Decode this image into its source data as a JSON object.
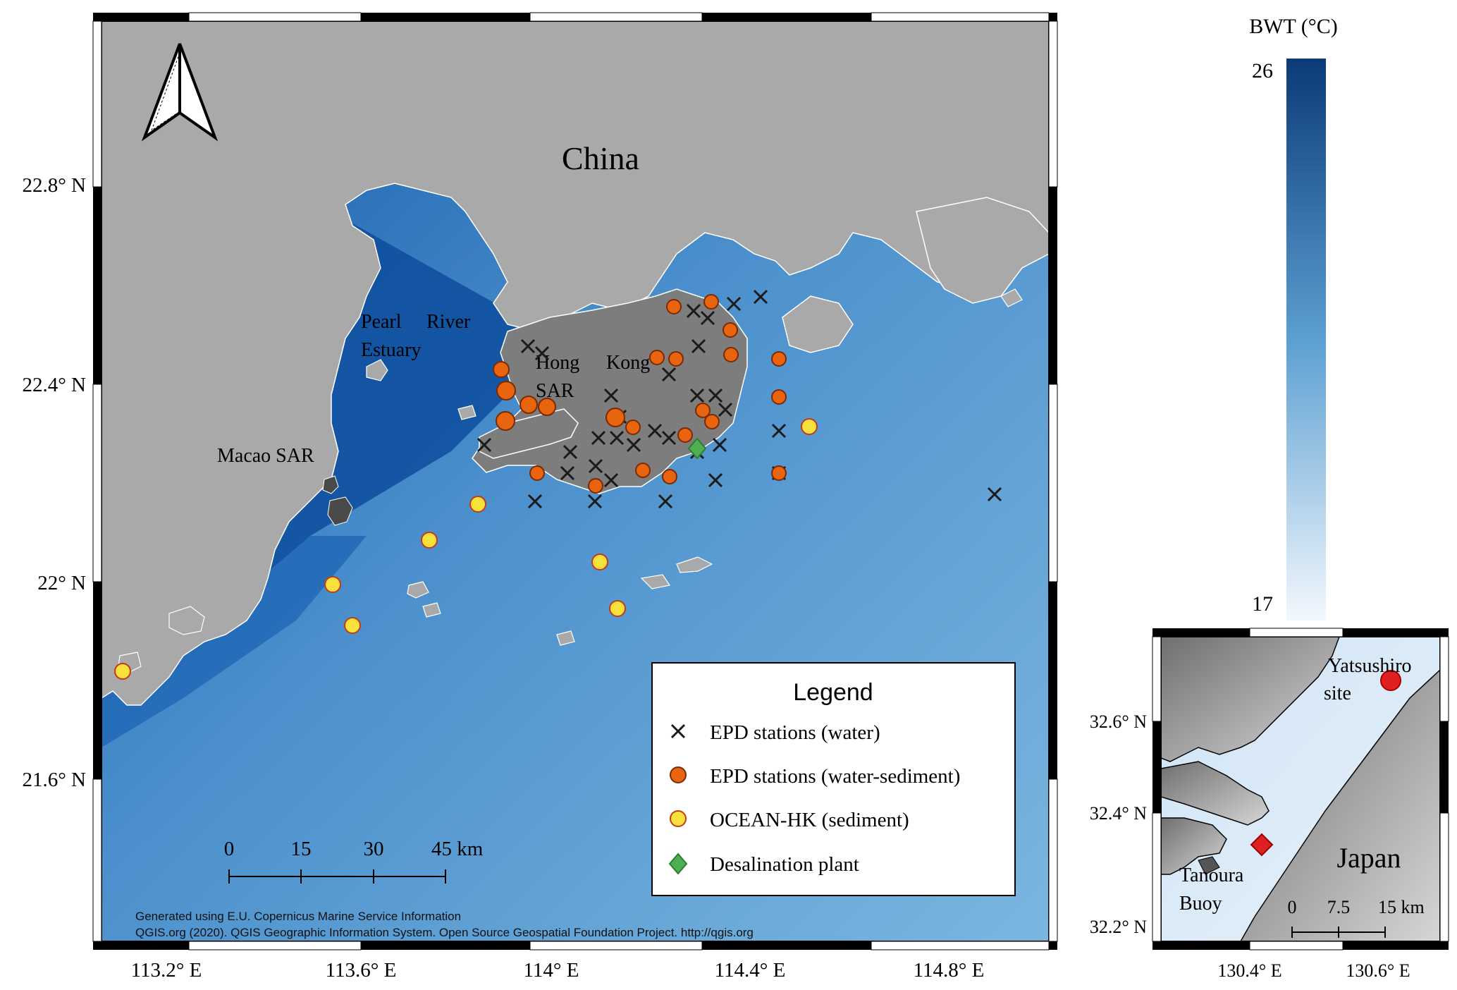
{
  "main_map": {
    "country_label": "China",
    "labels": {
      "pearl_river_line1": "Pearl",
      "pearl_river_line1b": "River",
      "pearl_river_line2": "Estuary",
      "hong_kong_line1": "Hong",
      "hong_kong_line1b": "Kong",
      "hong_kong_line2": "SAR",
      "macao": "Macao SAR"
    },
    "lat_ticks": [
      "22.8° N",
      "22.4° N",
      "22° N",
      "21.6° N"
    ],
    "lon_ticks": [
      "113.2° E",
      "113.6° E",
      "114° E",
      "114.4° E",
      "114.8° E"
    ],
    "scale_bar": {
      "ticks": [
        "0",
        "15",
        "30",
        "45 km"
      ]
    },
    "credits": [
      "Generated using E.U. Copernicus Marine Service Information",
      "QGIS.org (2020). QGIS Geographic Information System. Open Source Geospatial Foundation Project. http://qgis.org"
    ],
    "legend": {
      "title": "Legend",
      "items": [
        {
          "label": "EPD stations (water)",
          "symbol": "cross",
          "color": "#1a1a1a"
        },
        {
          "label": "EPD stations (water-sediment)",
          "symbol": "circle",
          "color": "#e8640f"
        },
        {
          "label": "OCEAN-HK (sediment)",
          "symbol": "circle",
          "color": "#f7e13a"
        },
        {
          "label": "Desalination plant",
          "symbol": "diamond",
          "color": "#4caf50"
        }
      ]
    }
  },
  "colorbar": {
    "title": "BWT (°C)",
    "max_label": "26",
    "min_label": "17",
    "min": 17,
    "max": 26,
    "color_low": "#f3f8fd",
    "color_high": "#0b3a78"
  },
  "inset_map": {
    "country_label": "Japan",
    "labels": {
      "yatsushiro_line1": "Yatsushiro",
      "yatsushiro_line2": "site",
      "tanoura_line1": "Tanoura",
      "tanoura_line2": "Buoy"
    },
    "lat_ticks": [
      "32.6° N",
      "32.4° N",
      "32.2° N"
    ],
    "lon_ticks": [
      "130.4° E",
      "130.6° E"
    ],
    "scale_bar": {
      "ticks": [
        "0",
        "7.5",
        "15 km"
      ]
    }
  },
  "colors": {
    "land": "#a9a9a9",
    "hk_land": "#7d7d7d",
    "sea": "#5b9fd2",
    "estuary": "#0d4e9e",
    "frame_black": "#000000"
  }
}
